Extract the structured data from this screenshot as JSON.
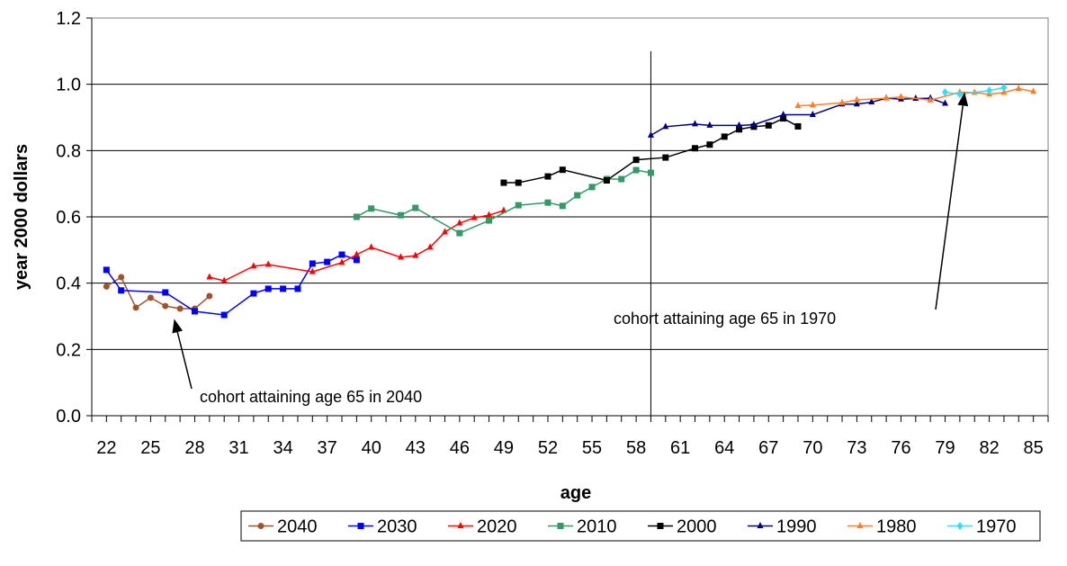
{
  "chart_data": {
    "type": "line",
    "xlabel": "age",
    "ylabel": "year 2000 dollars",
    "xlim": [
      21,
      86
    ],
    "xticks": [
      22,
      25,
      28,
      31,
      34,
      37,
      40,
      43,
      46,
      49,
      52,
      55,
      58,
      61,
      64,
      67,
      70,
      73,
      76,
      79,
      82,
      85
    ],
    "ylim": [
      0,
      1.2
    ],
    "yticks": [
      {
        "value": 0,
        "label": "0.0"
      },
      0.2,
      0.4,
      0.6,
      0.8,
      {
        "value": 1,
        "label": "1.0"
      },
      1.2
    ],
    "grid": true,
    "legend": "bottom",
    "vline": {
      "x": 59,
      "ymax": 1.1
    },
    "annotations": [
      "cohort attaining age 65 in 2040",
      "cohort attaining age 65 in 1970"
    ],
    "series": [
      {
        "name": "2040",
        "color": "#a0522d",
        "marker": "circle",
        "x": [
          22,
          23,
          24,
          25,
          26,
          27,
          28,
          29
        ],
        "values": [
          0.39,
          0.418,
          0.326,
          0.356,
          0.331,
          0.323,
          0.323,
          0.361
        ]
      },
      {
        "name": "2030",
        "color": "#0000ff",
        "marker": "square",
        "x": [
          22,
          23,
          26,
          28,
          30,
          32,
          33,
          34,
          35,
          36,
          37,
          38,
          39
        ],
        "values": [
          0.44,
          0.378,
          0.372,
          0.315,
          0.304,
          0.369,
          0.383,
          0.383,
          0.383,
          0.459,
          0.464,
          0.486,
          0.47
        ]
      },
      {
        "name": "2020",
        "color": "#ff0000",
        "marker": "triangle",
        "x": [
          29,
          30,
          32,
          33,
          36,
          38,
          39,
          40,
          42,
          43,
          44,
          45,
          46,
          47,
          48,
          49
        ],
        "values": [
          0.418,
          0.407,
          0.451,
          0.456,
          0.434,
          0.462,
          0.486,
          0.508,
          0.478,
          0.483,
          0.508,
          0.554,
          0.581,
          0.597,
          0.605,
          0.619
        ]
      },
      {
        "name": "2010",
        "color": "#339966",
        "marker": "square",
        "x": [
          39,
          40,
          42,
          43,
          46,
          48,
          50,
          52,
          53,
          54,
          55,
          56,
          57,
          58,
          59
        ],
        "values": [
          0.6,
          0.625,
          0.605,
          0.627,
          0.551,
          0.589,
          0.635,
          0.643,
          0.633,
          0.665,
          0.69,
          0.714,
          0.714,
          0.741,
          0.733
        ]
      },
      {
        "name": "2000",
        "color": "#000000",
        "marker": "square",
        "x": [
          49,
          50,
          52,
          53,
          56,
          58,
          60,
          62,
          63,
          64,
          65,
          66,
          67,
          68,
          69
        ],
        "values": [
          0.703,
          0.703,
          0.722,
          0.742,
          0.71,
          0.772,
          0.779,
          0.807,
          0.818,
          0.842,
          0.864,
          0.872,
          0.876,
          0.897,
          0.873
        ]
      },
      {
        "name": "1990",
        "color": "#000080",
        "marker": "triangle",
        "x": [
          59,
          60,
          62,
          63,
          65,
          66,
          68,
          70,
          72,
          73,
          74,
          75,
          76,
          77,
          78,
          79
        ],
        "values": [
          0.846,
          0.872,
          0.88,
          0.876,
          0.876,
          0.878,
          0.908,
          0.908,
          0.94,
          0.94,
          0.946,
          0.958,
          0.955,
          0.957,
          0.958,
          0.942
        ]
      },
      {
        "name": "1980",
        "color": "#ff7f27",
        "marker": "triangle",
        "x": [
          69,
          70,
          72,
          73,
          75,
          76,
          78,
          80,
          81,
          82,
          83,
          84,
          85
        ],
        "values": [
          0.935,
          0.937,
          0.944,
          0.953,
          0.958,
          0.962,
          0.952,
          0.976,
          0.975,
          0.97,
          0.975,
          0.987,
          0.978
        ]
      },
      {
        "name": "1970",
        "color": "#33ddff",
        "marker": "diamond",
        "x": [
          79,
          80,
          82,
          83
        ],
        "values": [
          0.976,
          0.97,
          0.981,
          0.99
        ]
      }
    ]
  }
}
